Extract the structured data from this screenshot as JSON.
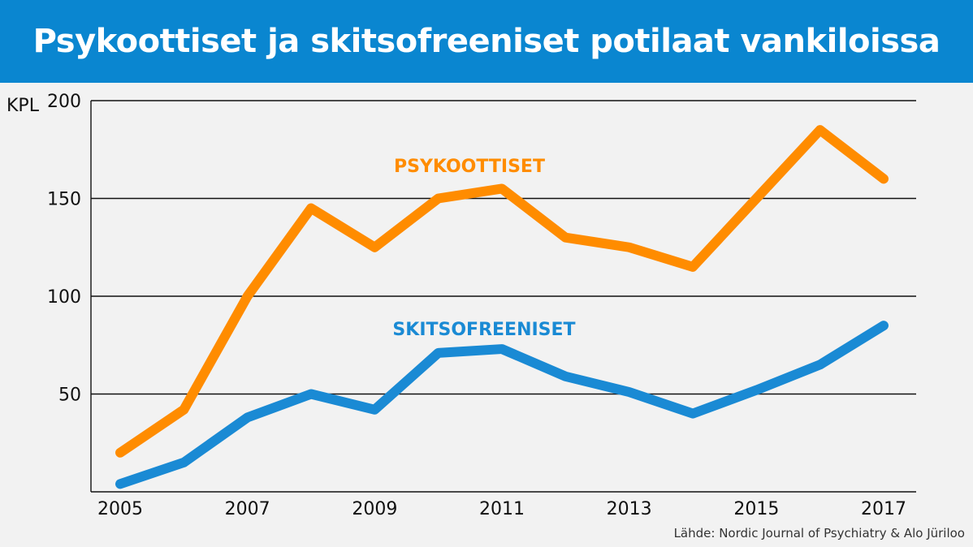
{
  "title": "Psykoottiset ja skitsofreeniset potilaat vankiloissa",
  "source": "Lähde: Nordic Journal of Psychiatry & Alo Jüriloo",
  "colors": {
    "header": "#0a86d0",
    "psykoottiset": "#ff8c00",
    "skitsofreeniset": "#1a8ad4"
  },
  "chart_data": {
    "type": "line",
    "ylabel": "KPL",
    "ylim": [
      0,
      200
    ],
    "yticks": [
      50,
      100,
      150,
      200
    ],
    "xlim": [
      2005,
      2017
    ],
    "xticks": [
      "2005",
      "2007",
      "2009",
      "2011",
      "2013",
      "2015",
      "2017"
    ],
    "grid": true,
    "x": [
      2005,
      2006,
      2007,
      2008,
      2009,
      2010,
      2011,
      2012,
      2013,
      2014,
      2015,
      2016,
      2017
    ],
    "series": [
      {
        "name": "PSYKOOTTISET",
        "color": "#ff8c00",
        "values": [
          20,
          42,
          100,
          145,
          125,
          150,
          155,
          130,
          125,
          115,
          150,
          185,
          160
        ]
      },
      {
        "name": "SKITSOFREENISET",
        "color": "#1a8ad4",
        "values": [
          4,
          15,
          38,
          50,
          42,
          71,
          73,
          59,
          51,
          40,
          52,
          65,
          85
        ]
      }
    ]
  }
}
